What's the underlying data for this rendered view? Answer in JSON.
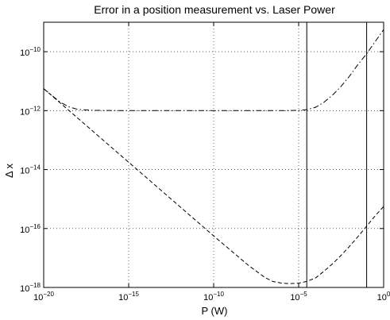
{
  "chart_data": {
    "type": "line",
    "title": "Error in a position measurement vs. Laser Power",
    "xlabel": "P (W)",
    "ylabel": "Δ x",
    "xscale": "log",
    "yscale": "log",
    "xlim": [
      1e-20,
      1
    ],
    "ylim": [
      1e-18,
      1e-09
    ],
    "grid": true,
    "x_ticks": [
      {
        "value": 1e-20,
        "base": "10",
        "exp": "−20"
      },
      {
        "value": 1e-15,
        "base": "10",
        "exp": "−15"
      },
      {
        "value": 1e-10,
        "base": "10",
        "exp": "−10"
      },
      {
        "value": 1e-05,
        "base": "10",
        "exp": "−5"
      },
      {
        "value": 1,
        "base": "10",
        "exp": "0"
      }
    ],
    "y_ticks": [
      {
        "value": 1e-18,
        "base": "10",
        "exp": "−18"
      },
      {
        "value": 1e-16,
        "base": "10",
        "exp": "−16"
      },
      {
        "value": 1e-14,
        "base": "10",
        "exp": "−14"
      },
      {
        "value": 1e-12,
        "base": "10",
        "exp": "−12"
      },
      {
        "value": 1e-10,
        "base": "10",
        "exp": "−10"
      }
    ],
    "series": [
      {
        "style": "dashdot",
        "color": "#000000",
        "x": [
          1e-20,
          3e-20,
          1e-19,
          3e-19,
          1e-18,
          1e-17,
          1e-15,
          1e-12,
          1e-09,
          1e-06,
          1e-05,
          3e-05,
          0.0001,
          0.0003,
          0.001,
          0.003,
          0.01,
          0.03,
          0.1,
          0.3,
          1
        ],
        "y": [
          5.6e-12,
          3.3e-12,
          1.9e-12,
          1.35e-12,
          1.1e-12,
          1.02e-12,
          1e-12,
          1e-12,
          1e-12,
          1e-12,
          1.02e-12,
          1.08e-12,
          1.3e-12,
          1.9e-12,
          3.4e-12,
          6.5e-12,
          1.5e-11,
          3.6e-11,
          8.5e-11,
          2.1e-10,
          5.6e-10
        ]
      },
      {
        "style": "dashed",
        "color": "#000000",
        "x": [
          1e-20,
          1e-18,
          1e-16,
          1e-14,
          1e-12,
          1e-10,
          1e-08,
          1e-07,
          3e-07,
          1e-06,
          3e-06,
          1e-05,
          3e-05,
          0.0001,
          0.0003,
          0.001,
          0.003,
          0.01,
          0.03,
          0.1,
          0.3,
          1
        ],
        "y": [
          5.6e-12,
          5.6e-13,
          5.6e-14,
          5.6e-15,
          5.6e-16,
          5.6e-17,
          5.9e-18,
          2.2e-18,
          1.6e-18,
          1.4e-18,
          1.35e-18,
          1.4e-18,
          1.6e-18,
          2.1e-18,
          3.5e-18,
          6.4e-18,
          1.2e-17,
          2.5e-17,
          5.2e-17,
          1.2e-16,
          2.6e-16,
          5.6e-16
        ]
      }
    ],
    "vlines": [
      3e-05,
      0.1
    ]
  }
}
